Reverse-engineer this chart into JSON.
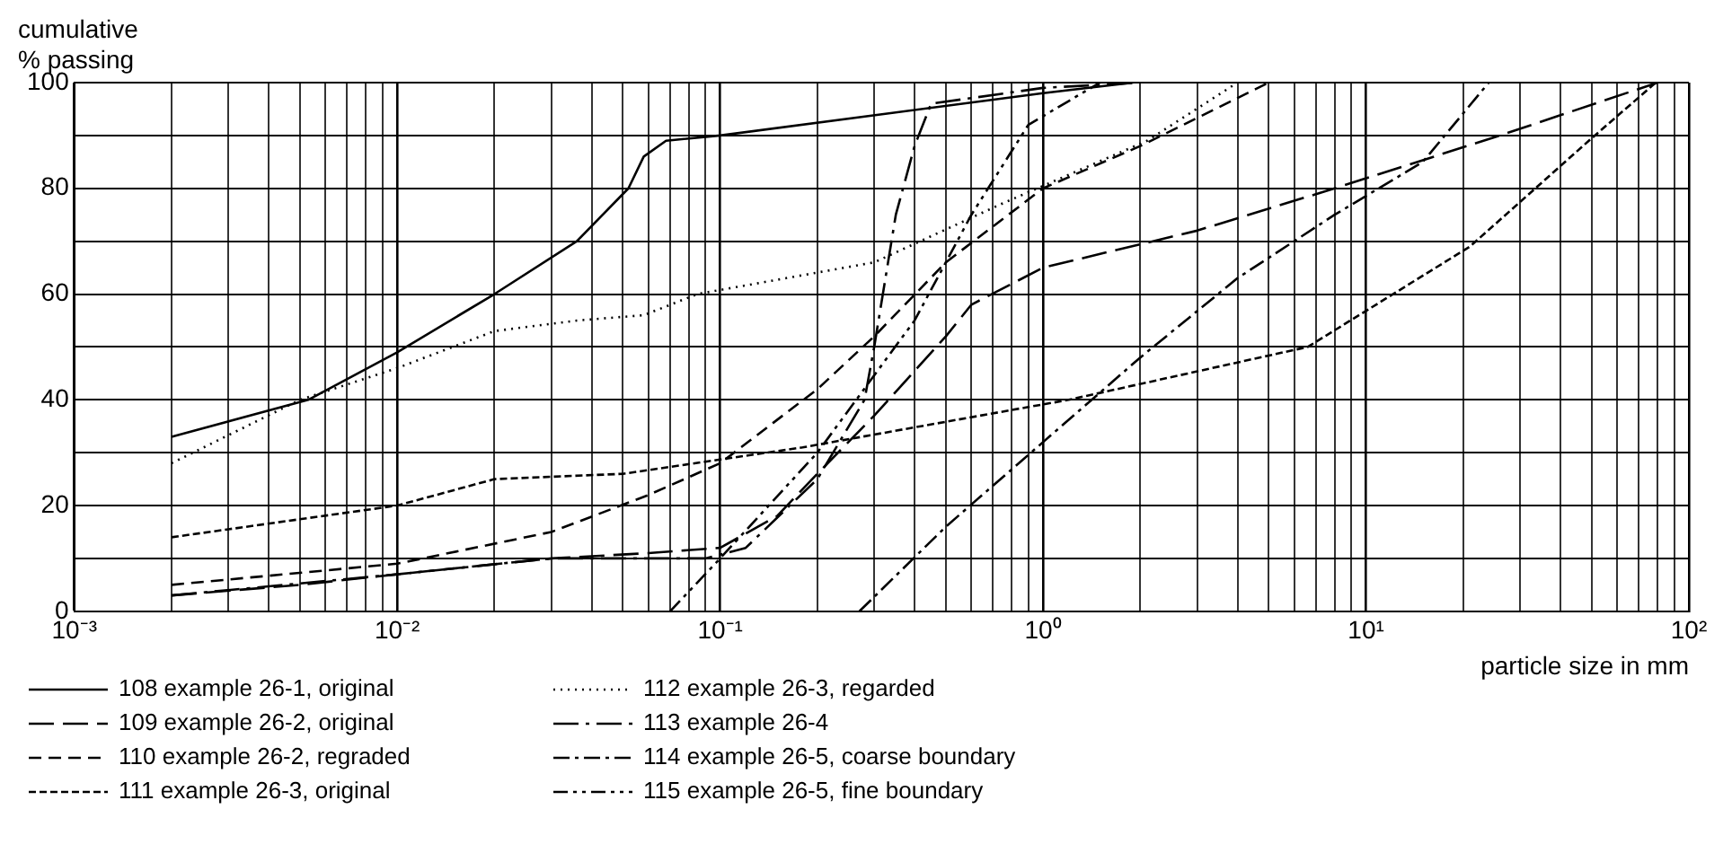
{
  "chart_data": {
    "type": "line",
    "ylabel": "cumulative\n% passing",
    "xlabel": "particle size in mm",
    "log": "x",
    "grid": true,
    "legend": "bottom",
    "marker": "none",
    "xlim": [
      0.001,
      100
    ],
    "xticks": [
      {
        "value": 0.001,
        "label": "10⁻³"
      },
      {
        "value": 0.002,
        "label": null
      },
      {
        "value": 0.003,
        "label": null
      },
      {
        "value": 0.004,
        "label": null
      },
      {
        "value": 0.005,
        "label": null
      },
      {
        "value": 0.006,
        "label": null
      },
      {
        "value": 0.007,
        "label": null
      },
      {
        "value": 0.008,
        "label": null
      },
      {
        "value": 0.009,
        "label": null
      },
      {
        "value": 0.01,
        "label": "10⁻²"
      },
      {
        "value": 0.02,
        "label": null
      },
      {
        "value": 0.03,
        "label": null
      },
      {
        "value": 0.04,
        "label": null
      },
      {
        "value": 0.05,
        "label": null
      },
      {
        "value": 0.06,
        "label": null
      },
      {
        "value": 0.07,
        "label": null
      },
      {
        "value": 0.08,
        "label": null
      },
      {
        "value": 0.09,
        "label": null
      },
      {
        "value": 0.1,
        "label": "10⁻¹"
      },
      {
        "value": 0.2,
        "label": null
      },
      {
        "value": 0.3,
        "label": null
      },
      {
        "value": 0.4,
        "label": null
      },
      {
        "value": 0.5,
        "label": null
      },
      {
        "value": 0.6,
        "label": null
      },
      {
        "value": 0.7,
        "label": null
      },
      {
        "value": 0.8,
        "label": null
      },
      {
        "value": 0.9,
        "label": null
      },
      {
        "value": 1,
        "label": "10⁰"
      },
      {
        "value": 2,
        "label": null
      },
      {
        "value": 3,
        "label": null
      },
      {
        "value": 4,
        "label": null
      },
      {
        "value": 5,
        "label": null
      },
      {
        "value": 6,
        "label": null
      },
      {
        "value": 7,
        "label": null
      },
      {
        "value": 8,
        "label": null
      },
      {
        "value": 9,
        "label": null
      },
      {
        "value": 10,
        "label": "10¹"
      },
      {
        "value": 20,
        "label": null
      },
      {
        "value": 30,
        "label": null
      },
      {
        "value": 40,
        "label": null
      },
      {
        "value": 50,
        "label": null
      },
      {
        "value": 60,
        "label": null
      },
      {
        "value": 70,
        "label": null
      },
      {
        "value": 80,
        "label": null
      },
      {
        "value": 90,
        "label": null
      },
      {
        "value": 100,
        "label": "10²"
      }
    ],
    "ylim": [
      0,
      100
    ],
    "yticks": [
      0,
      {
        "value": 10,
        "label": null
      },
      20,
      {
        "value": 30,
        "label": null
      },
      40,
      {
        "value": 50,
        "label": null
      },
      60,
      {
        "value": 70,
        "label": null
      },
      80,
      {
        "value": 90,
        "label": null
      },
      100
    ],
    "series": [
      {
        "name": "108 example 26-1, original",
        "color": "#000000",
        "line_style": "solid",
        "x": [
          0.002,
          0.0053,
          0.01,
          0.02,
          0.036,
          0.052,
          0.058,
          0.068,
          0.1,
          1,
          1.9
        ],
        "values": [
          33,
          40,
          49,
          60,
          70,
          80,
          86,
          89,
          90,
          98,
          100
        ]
      },
      {
        "name": "109 example 26-2, original",
        "color": "#000000",
        "line_style": "longdash",
        "x": [
          0.002,
          0.005,
          0.01,
          0.03,
          0.06,
          0.1,
          0.15,
          0.2,
          0.3,
          0.5,
          0.6,
          1,
          3,
          8,
          26,
          80
        ],
        "values": [
          3,
          5,
          7,
          10,
          11,
          12,
          18,
          26,
          37,
          52,
          58,
          65,
          72,
          80,
          90,
          100
        ]
      },
      {
        "name": "110 example 26-2, regraded",
        "color": "#000000",
        "line_style": "dashed",
        "x": [
          0.002,
          0.01,
          0.03,
          0.06,
          0.1,
          0.2,
          0.3,
          0.5,
          1,
          2,
          5
        ],
        "values": [
          5,
          9,
          15,
          22,
          28,
          42,
          52,
          66,
          80,
          88,
          100
        ]
      },
      {
        "name": "111 example 26-3, original",
        "color": "#000000",
        "line_style": "shortdash",
        "x": [
          0.002,
          0.01,
          0.02,
          0.05,
          0.18,
          1.2,
          6.6,
          21,
          49,
          79
        ],
        "values": [
          14,
          20,
          25,
          26,
          31,
          40,
          50,
          69,
          89,
          100
        ]
      },
      {
        "name": "112 example 26-3, regarded",
        "color": "#000000",
        "line_style": "dotted",
        "x": [
          0.002,
          0.005,
          0.01,
          0.02,
          0.036,
          0.058,
          0.085,
          0.3,
          0.74,
          2.1,
          4
        ],
        "values": [
          28,
          40,
          46,
          53,
          55,
          56,
          60,
          66,
          77,
          89,
          100
        ]
      },
      {
        "name": "113 example 26-4",
        "color": "#000000",
        "line_style": "longdashdot",
        "x": [
          0.002,
          0.01,
          0.03,
          0.09,
          0.12,
          0.2,
          0.28,
          0.3,
          0.35,
          0.4,
          0.45,
          1,
          2
        ],
        "values": [
          3,
          7,
          10,
          10,
          12,
          25,
          40,
          50,
          75,
          88,
          96,
          99,
          100
        ]
      },
      {
        "name": "114 example 26-5, coarse boundary",
        "color": "#000000",
        "line_style": "dashdot",
        "x": [
          0.27,
          0.5,
          1,
          2,
          4,
          8,
          15,
          24
        ],
        "values": [
          0,
          16,
          32,
          48,
          63,
          75,
          85,
          100
        ]
      },
      {
        "name": "115 example 26-5, fine boundary",
        "color": "#000000",
        "line_style": "dashdotdot",
        "x": [
          0.07,
          0.1,
          0.2,
          0.4,
          0.6,
          0.9,
          1.5
        ],
        "values": [
          0,
          10,
          30,
          55,
          75,
          92,
          100
        ]
      }
    ]
  }
}
